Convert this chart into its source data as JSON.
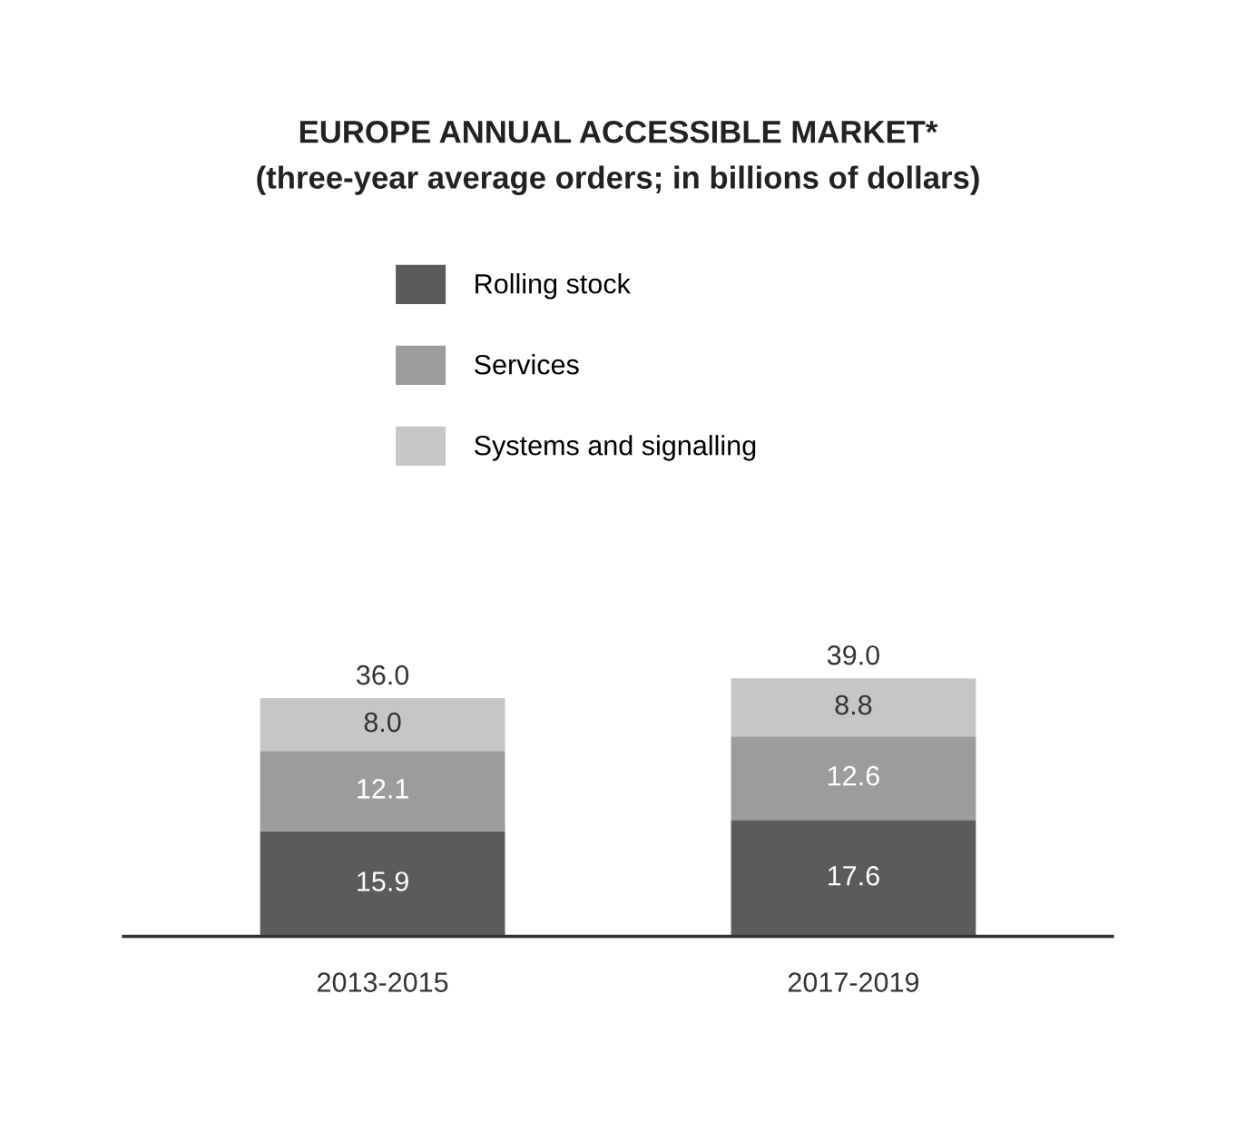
{
  "chart_data": {
    "type": "bar",
    "title": "EUROPE ANNUAL ACCESSIBLE MARKET*",
    "subtitle": "(three-year average orders; in billions of dollars)",
    "categories": [
      "2013-2015",
      "2017-2019"
    ],
    "stacked": true,
    "legend": "top",
    "data_labels": true,
    "grid": false,
    "series": [
      {
        "name": "Rolling stock",
        "color": "#5b5b5b",
        "values": [
          15.9,
          17.6
        ],
        "value_labels": [
          "15.9",
          "17.6"
        ]
      },
      {
        "name": "Services",
        "color": "#9c9c9c",
        "values": [
          12.1,
          12.6
        ],
        "value_labels": [
          "12.1",
          "12.6"
        ]
      },
      {
        "name": "Systems and signalling",
        "color": "#c6c6c6",
        "values": [
          8.0,
          8.8
        ],
        "value_labels": [
          "8.0",
          "8.8"
        ]
      }
    ],
    "totals": [
      "36.0",
      "39.0"
    ]
  }
}
